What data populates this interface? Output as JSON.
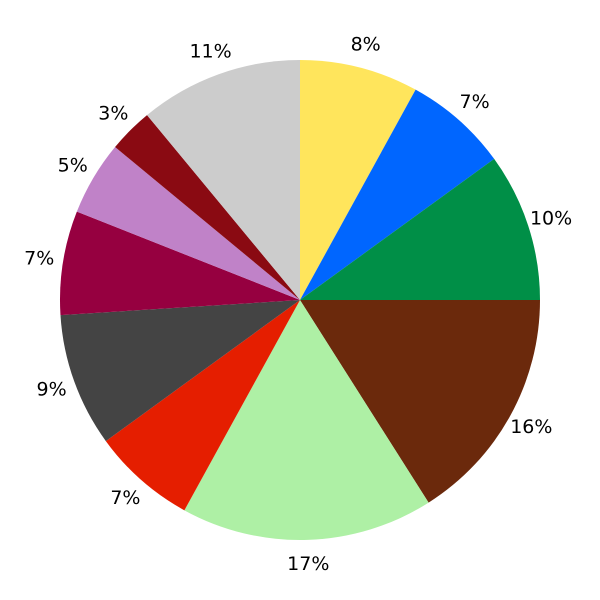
{
  "chart_data": {
    "type": "pie",
    "start": "top",
    "direction": "clockwise",
    "slices": [
      {
        "label": "8%",
        "value": 8,
        "color": "#FFE55C"
      },
      {
        "label": "7%",
        "value": 7,
        "color": "#0066FF"
      },
      {
        "label": "10%",
        "value": 10,
        "color": "#008F47"
      },
      {
        "label": "16%",
        "value": 16,
        "color": "#6B290C"
      },
      {
        "label": "17%",
        "value": 17,
        "color": "#AEF0A5"
      },
      {
        "label": "7%",
        "value": 7,
        "color": "#E51E00"
      },
      {
        "label": "9%",
        "value": 9,
        "color": "#444444"
      },
      {
        "label": "7%",
        "value": 7,
        "color": "#960040"
      },
      {
        "label": "5%",
        "value": 5,
        "color": "#C082C8"
      },
      {
        "label": "3%",
        "value": 3,
        "color": "#8A0A12"
      },
      {
        "label": "11%",
        "value": 11,
        "color": "#CCCCCC"
      }
    ]
  }
}
